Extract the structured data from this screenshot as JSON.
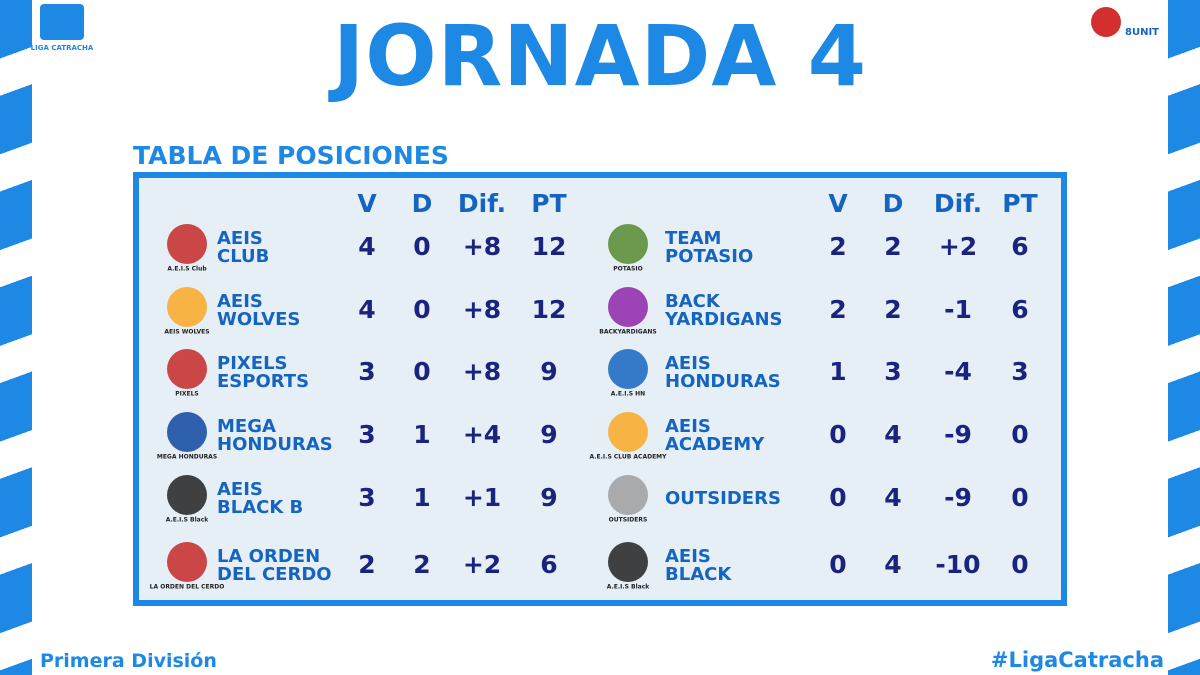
{
  "header": {
    "brand": "LIGA CATRACHA",
    "sponsor": "8UNIT",
    "title": "JORNADA 4",
    "subtitle": "TABLA DE POSICIONES"
  },
  "columns": [
    "V",
    "D",
    "Dif.",
    "PT"
  ],
  "tables": [
    {
      "rows": [
        {
          "logo": "A.E.I.S Club",
          "name": [
            "AEIS",
            "CLUB"
          ],
          "stats": [
            "4",
            "0",
            "+8",
            "12"
          ]
        },
        {
          "logo": "AEIS WOLVES",
          "name": [
            "AEIS",
            "WOLVES"
          ],
          "stats": [
            "4",
            "0",
            "+8",
            "12"
          ]
        },
        {
          "logo": "PIXELS",
          "name": [
            "PIXELS",
            "ESPORTS"
          ],
          "stats": [
            "3",
            "0",
            "+8",
            "9"
          ]
        },
        {
          "logo": "MEGA HONDURAS",
          "name": [
            "MEGA",
            "HONDURAS"
          ],
          "stats": [
            "3",
            "1",
            "+4",
            "9"
          ]
        },
        {
          "logo": "A.E.I.S Black",
          "name": [
            "AEIS",
            "BLACK B"
          ],
          "stats": [
            "3",
            "1",
            "+1",
            "9"
          ]
        },
        {
          "logo": "LA ORDEN DEL CERDO",
          "name": [
            "LA ORDEN",
            "DEL CERDO"
          ],
          "stats": [
            "2",
            "2",
            "+2",
            "6"
          ]
        }
      ]
    },
    {
      "rows": [
        {
          "logo": "POTASIO",
          "name": [
            "TEAM",
            "POTASIO"
          ],
          "stats": [
            "2",
            "2",
            "+2",
            "6"
          ]
        },
        {
          "logo": "BACKYARDIGANS",
          "name": [
            "BACK",
            "YARDIGANS"
          ],
          "stats": [
            "2",
            "2",
            "-1",
            "6"
          ]
        },
        {
          "logo": "A.E.I.S HN",
          "name": [
            "AEIS",
            "HONDURAS"
          ],
          "stats": [
            "1",
            "3",
            "-4",
            "3"
          ]
        },
        {
          "logo": "A.E.I.S CLUB ACADEMY",
          "name": [
            "AEIS",
            "ACADEMY"
          ],
          "stats": [
            "0",
            "4",
            "-9",
            "0"
          ]
        },
        {
          "logo": "OUTSIDERS",
          "name": [
            "OUTSIDERS"
          ],
          "stats": [
            "0",
            "4",
            "-9",
            "0"
          ]
        },
        {
          "logo": "A.E.I.S Black",
          "name": [
            "AEIS",
            "BLACK"
          ],
          "stats": [
            "0",
            "4",
            "-10",
            "0"
          ]
        }
      ]
    }
  ],
  "footer": {
    "left": "Primera División",
    "right": "#LigaCatracha"
  }
}
